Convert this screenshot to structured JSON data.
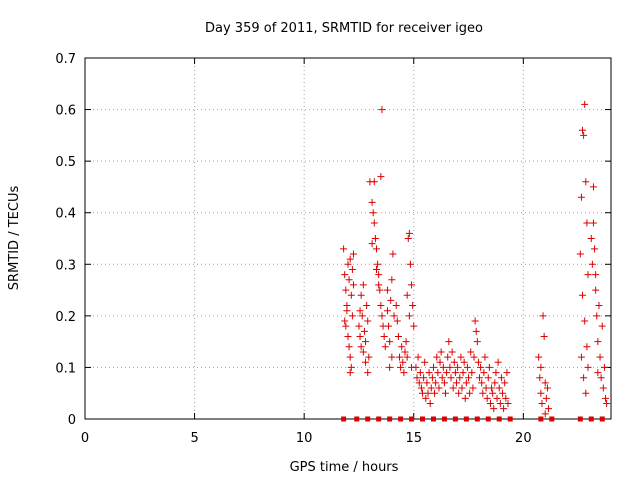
{
  "chart_data": {
    "type": "scatter",
    "title": "Day 359 of 2011, SRMTID for receiver igeo",
    "xlabel": "GPS time / hours",
    "ylabel": "SRMTID / TECUs",
    "xlim": [
      0,
      24
    ],
    "ylim": [
      0,
      0.7
    ],
    "xticks": [
      0,
      5,
      10,
      15,
      20
    ],
    "yticks": [
      0,
      0.1,
      0.2,
      0.3,
      0.4,
      0.5,
      0.6,
      0.7
    ],
    "xtick_labels": [
      "0",
      "5",
      "10",
      "15",
      "20"
    ],
    "ytick_labels": [
      "0",
      "0.1",
      "0.2",
      "0.3",
      "0.4",
      "0.5",
      "0.6",
      "0.7"
    ],
    "grid": true,
    "marker": "+",
    "color": "#dd0000",
    "points": [
      [
        11.8,
        0.33
      ],
      [
        11.85,
        0.28
      ],
      [
        11.9,
        0.25
      ],
      [
        11.95,
        0.22
      ],
      [
        12.0,
        0.3
      ],
      [
        12.05,
        0.27
      ],
      [
        12.1,
        0.31
      ],
      [
        12.15,
        0.24
      ],
      [
        12.2,
        0.2
      ],
      [
        12.25,
        0.26
      ],
      [
        11.9,
        0.18
      ],
      [
        12.0,
        0.16
      ],
      [
        12.05,
        0.14
      ],
      [
        12.1,
        0.12
      ],
      [
        12.15,
        0.1
      ],
      [
        11.95,
        0.21
      ],
      [
        12.2,
        0.29
      ],
      [
        12.25,
        0.32
      ],
      [
        11.85,
        0.19
      ],
      [
        12.1,
        0.09
      ],
      [
        12.5,
        0.18
      ],
      [
        12.55,
        0.16
      ],
      [
        12.6,
        0.14
      ],
      [
        12.65,
        0.2
      ],
      [
        12.7,
        0.13
      ],
      [
        12.75,
        0.17
      ],
      [
        12.8,
        0.15
      ],
      [
        12.85,
        0.22
      ],
      [
        12.9,
        0.19
      ],
      [
        12.95,
        0.12
      ],
      [
        12.6,
        0.24
      ],
      [
        12.7,
        0.26
      ],
      [
        12.8,
        0.11
      ],
      [
        12.9,
        0.09
      ],
      [
        12.55,
        0.21
      ],
      [
        13.0,
        0.46
      ],
      [
        13.1,
        0.42
      ],
      [
        13.15,
        0.4
      ],
      [
        13.2,
        0.38
      ],
      [
        13.25,
        0.35
      ],
      [
        13.3,
        0.33
      ],
      [
        13.35,
        0.3
      ],
      [
        13.2,
        0.46
      ],
      [
        13.1,
        0.34
      ],
      [
        13.3,
        0.29
      ],
      [
        13.4,
        0.28
      ],
      [
        13.45,
        0.25
      ],
      [
        13.5,
        0.22
      ],
      [
        13.55,
        0.2
      ],
      [
        13.6,
        0.18
      ],
      [
        13.65,
        0.16
      ],
      [
        13.7,
        0.14
      ],
      [
        13.5,
        0.47
      ],
      [
        13.55,
        0.6
      ],
      [
        13.4,
        0.26
      ],
      [
        13.8,
        0.21
      ],
      [
        13.85,
        0.18
      ],
      [
        13.9,
        0.15
      ],
      [
        13.95,
        0.23
      ],
      [
        14.0,
        0.27
      ],
      [
        14.05,
        0.32
      ],
      [
        14.1,
        0.2
      ],
      [
        13.9,
        0.1
      ],
      [
        14.0,
        0.12
      ],
      [
        13.8,
        0.25
      ],
      [
        14.2,
        0.22
      ],
      [
        14.25,
        0.19
      ],
      [
        14.3,
        0.16
      ],
      [
        14.35,
        0.12
      ],
      [
        14.4,
        0.1
      ],
      [
        14.45,
        0.14
      ],
      [
        14.5,
        0.11
      ],
      [
        14.55,
        0.09
      ],
      [
        14.6,
        0.13
      ],
      [
        14.65,
        0.15
      ],
      [
        14.7,
        0.24
      ],
      [
        14.75,
        0.35
      ],
      [
        14.8,
        0.36
      ],
      [
        14.85,
        0.3
      ],
      [
        14.9,
        0.26
      ],
      [
        14.95,
        0.22
      ],
      [
        15.0,
        0.18
      ],
      [
        14.8,
        0.2
      ],
      [
        14.7,
        0.12
      ],
      [
        14.9,
        0.1
      ],
      [
        15.1,
        0.1
      ],
      [
        15.15,
        0.08
      ],
      [
        15.2,
        0.12
      ],
      [
        15.25,
        0.07
      ],
      [
        15.3,
        0.09
      ],
      [
        15.35,
        0.06
      ],
      [
        15.4,
        0.05
      ],
      [
        15.45,
        0.08
      ],
      [
        15.5,
        0.11
      ],
      [
        15.55,
        0.04
      ],
      [
        15.6,
        0.07
      ],
      [
        15.65,
        0.05
      ],
      [
        15.7,
        0.09
      ],
      [
        15.75,
        0.03
      ],
      [
        15.8,
        0.06
      ],
      [
        15.85,
        0.08
      ],
      [
        15.9,
        0.1
      ],
      [
        15.95,
        0.05
      ],
      [
        16.0,
        0.07
      ],
      [
        16.05,
        0.12
      ],
      [
        16.1,
        0.09
      ],
      [
        16.15,
        0.06
      ],
      [
        16.2,
        0.11
      ],
      [
        16.25,
        0.13
      ],
      [
        16.3,
        0.08
      ],
      [
        16.35,
        0.1
      ],
      [
        16.4,
        0.07
      ],
      [
        16.45,
        0.05
      ],
      [
        16.5,
        0.09
      ],
      [
        16.55,
        0.12
      ],
      [
        16.6,
        0.15
      ],
      [
        16.65,
        0.1
      ],
      [
        16.7,
        0.08
      ],
      [
        16.75,
        0.13
      ],
      [
        16.8,
        0.06
      ],
      [
        16.85,
        0.11
      ],
      [
        16.9,
        0.09
      ],
      [
        16.95,
        0.07
      ],
      [
        17.0,
        0.1
      ],
      [
        17.05,
        0.05
      ],
      [
        17.1,
        0.08
      ],
      [
        17.15,
        0.12
      ],
      [
        17.2,
        0.06
      ],
      [
        17.25,
        0.09
      ],
      [
        17.3,
        0.11
      ],
      [
        17.35,
        0.04
      ],
      [
        17.4,
        0.07
      ],
      [
        17.45,
        0.1
      ],
      [
        17.5,
        0.08
      ],
      [
        17.55,
        0.05
      ],
      [
        17.6,
        0.13
      ],
      [
        17.65,
        0.09
      ],
      [
        17.7,
        0.06
      ],
      [
        17.75,
        0.12
      ],
      [
        17.8,
        0.19
      ],
      [
        17.85,
        0.17
      ],
      [
        17.9,
        0.15
      ],
      [
        17.95,
        0.11
      ],
      [
        18.0,
        0.08
      ],
      [
        18.05,
        0.1
      ],
      [
        18.1,
        0.07
      ],
      [
        18.15,
        0.05
      ],
      [
        18.2,
        0.09
      ],
      [
        18.25,
        0.12
      ],
      [
        18.3,
        0.06
      ],
      [
        18.35,
        0.04
      ],
      [
        18.4,
        0.08
      ],
      [
        18.45,
        0.1
      ],
      [
        18.5,
        0.03
      ],
      [
        18.55,
        0.06
      ],
      [
        18.6,
        0.05
      ],
      [
        18.65,
        0.02
      ],
      [
        18.7,
        0.07
      ],
      [
        18.75,
        0.09
      ],
      [
        18.8,
        0.04
      ],
      [
        18.85,
        0.11
      ],
      [
        18.9,
        0.06
      ],
      [
        18.95,
        0.03
      ],
      [
        19.0,
        0.08
      ],
      [
        19.05,
        0.05
      ],
      [
        19.1,
        0.02
      ],
      [
        19.15,
        0.07
      ],
      [
        19.2,
        0.04
      ],
      [
        19.25,
        0.09
      ],
      [
        19.3,
        0.03
      ],
      [
        20.7,
        0.12
      ],
      [
        20.75,
        0.08
      ],
      [
        20.8,
        0.05
      ],
      [
        20.85,
        0.03
      ],
      [
        20.9,
        0.2
      ],
      [
        20.95,
        0.16
      ],
      [
        21.0,
        0.07
      ],
      [
        21.05,
        0.04
      ],
      [
        21.1,
        0.06
      ],
      [
        21.15,
        0.02
      ],
      [
        20.8,
        0.1
      ],
      [
        21.0,
        0.01
      ],
      [
        22.6,
        0.32
      ],
      [
        22.65,
        0.43
      ],
      [
        22.7,
        0.56
      ],
      [
        22.75,
        0.55
      ],
      [
        22.8,
        0.61
      ],
      [
        22.85,
        0.46
      ],
      [
        22.9,
        0.38
      ],
      [
        22.95,
        0.28
      ],
      [
        22.7,
        0.24
      ],
      [
        22.8,
        0.19
      ],
      [
        22.9,
        0.14
      ],
      [
        22.75,
        0.08
      ],
      [
        22.85,
        0.05
      ],
      [
        22.65,
        0.12
      ],
      [
        22.95,
        0.1
      ],
      [
        23.1,
        0.35
      ],
      [
        23.15,
        0.3
      ],
      [
        23.2,
        0.45
      ],
      [
        23.25,
        0.33
      ],
      [
        23.3,
        0.25
      ],
      [
        23.35,
        0.2
      ],
      [
        23.4,
        0.15
      ],
      [
        23.45,
        0.22
      ],
      [
        23.5,
        0.12
      ],
      [
        23.55,
        0.08
      ],
      [
        23.6,
        0.18
      ],
      [
        23.65,
        0.06
      ],
      [
        23.7,
        0.1
      ],
      [
        23.75,
        0.04
      ],
      [
        23.8,
        0.03
      ],
      [
        23.2,
        0.38
      ],
      [
        23.3,
        0.28
      ],
      [
        23.4,
        0.09
      ]
    ],
    "zero_points": [
      11.8,
      12.4,
      12.9,
      13.4,
      13.9,
      14.4,
      14.9,
      15.4,
      15.9,
      16.4,
      16.9,
      17.4,
      17.9,
      18.4,
      18.9,
      19.4,
      20.8,
      21.3,
      22.6,
      23.1,
      23.6
    ]
  }
}
